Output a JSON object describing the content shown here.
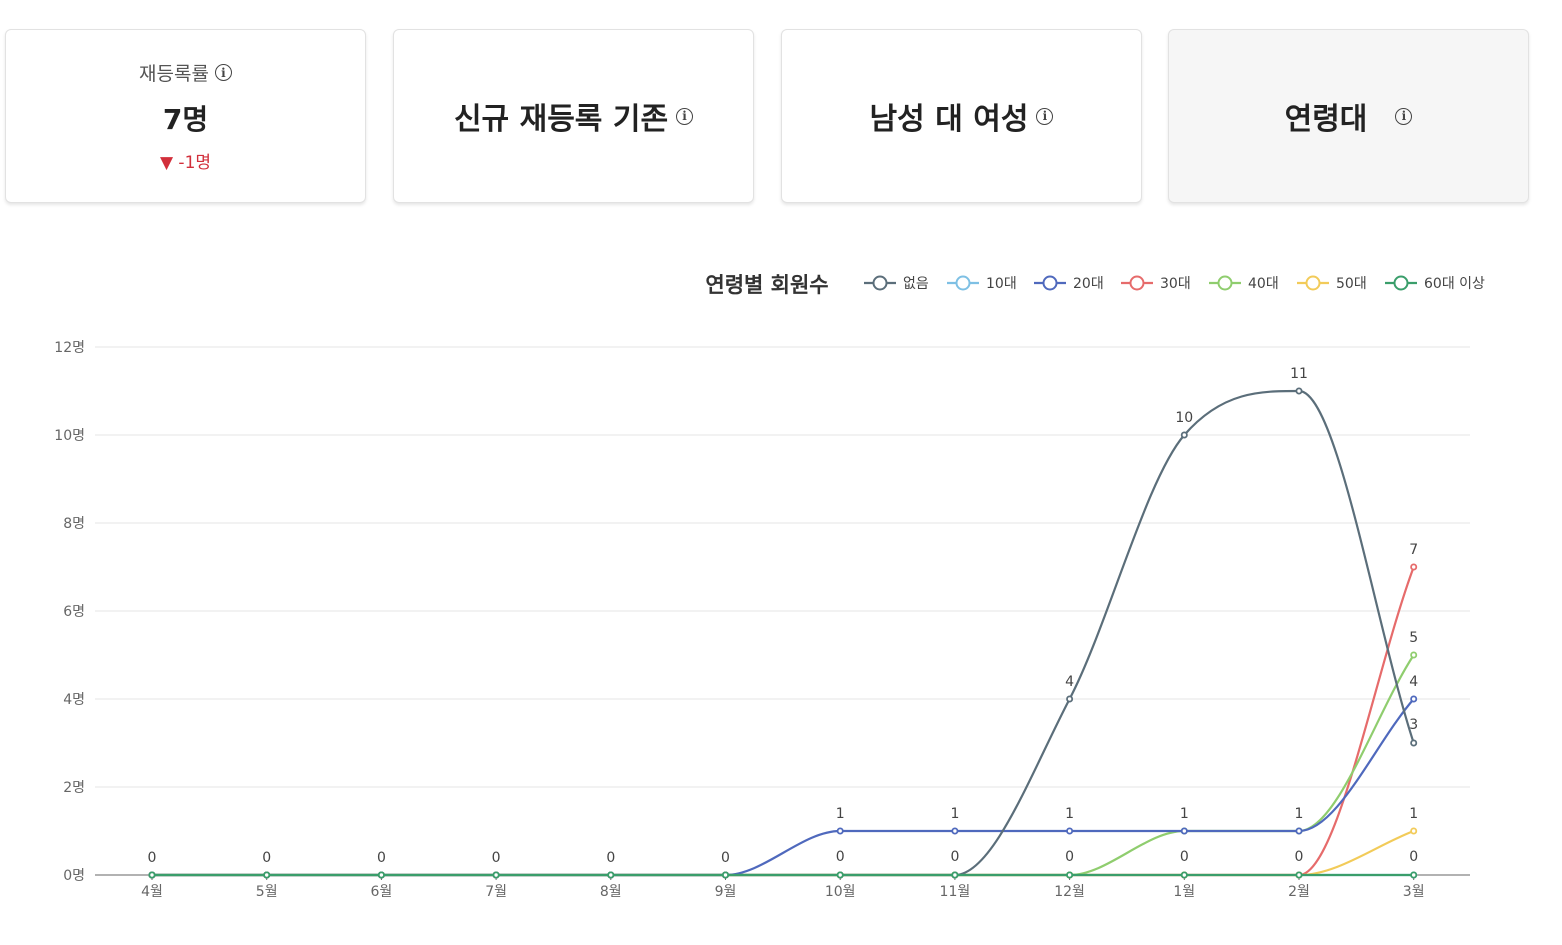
{
  "cards": [
    {
      "title": "재등록률",
      "value": "7명",
      "delta": "▼ -1명"
    },
    {
      "title": "신규 재등록 기존"
    },
    {
      "title": "남성 대 여성"
    },
    {
      "title": "연령대"
    }
  ],
  "info_icon_glyph": "i",
  "chart_data": {
    "type": "line",
    "title": "연령별 회원수",
    "categories": [
      "4월",
      "5월",
      "6월",
      "7월",
      "8월",
      "9월",
      "10월",
      "11월",
      "12월",
      "1월",
      "2월",
      "3월"
    ],
    "y_unit": "명",
    "ylim": [
      0,
      12
    ],
    "yticks": [
      0,
      2,
      4,
      6,
      8,
      10,
      12
    ],
    "grid": true,
    "legend_position": "top-right",
    "series": [
      {
        "name": "없음",
        "color": "#5b6e7a",
        "values": [
          0,
          0,
          0,
          0,
          0,
          0,
          0,
          0,
          4,
          10,
          11,
          3
        ]
      },
      {
        "name": "10대",
        "color": "#7ec0e4",
        "values": [
          0,
          0,
          0,
          0,
          0,
          0,
          0,
          0,
          0,
          0,
          0,
          0
        ]
      },
      {
        "name": "20대",
        "color": "#4f69bd",
        "values": [
          0,
          0,
          0,
          0,
          0,
          0,
          1,
          1,
          1,
          1,
          1,
          4
        ]
      },
      {
        "name": "30대",
        "color": "#e66b6b",
        "values": [
          0,
          0,
          0,
          0,
          0,
          0,
          0,
          0,
          0,
          0,
          0,
          7
        ]
      },
      {
        "name": "40대",
        "color": "#8fcd6e",
        "values": [
          0,
          0,
          0,
          0,
          0,
          0,
          0,
          0,
          0,
          1,
          1,
          5
        ]
      },
      {
        "name": "50대",
        "color": "#f2cb59",
        "values": [
          0,
          0,
          0,
          0,
          0,
          0,
          0,
          0,
          0,
          0,
          0,
          1
        ]
      },
      {
        "name": "60대 이상",
        "color": "#3a9e6b",
        "values": [
          0,
          0,
          0,
          0,
          0,
          0,
          0,
          0,
          0,
          0,
          0,
          0
        ]
      }
    ],
    "labels": {
      "upper": [
        "0",
        "0",
        "0",
        "0",
        "0",
        "0",
        "1",
        "1",
        "4",
        "10",
        "11",
        "7"
      ],
      "extra": [
        {
          "index": 11,
          "text": "5"
        },
        {
          "index": 11,
          "text": "4"
        },
        {
          "index": 11,
          "text": "3"
        },
        {
          "index": 8,
          "text": "1"
        },
        {
          "index": 9,
          "text": "1"
        },
        {
          "index": 10,
          "text": "1"
        },
        {
          "index": 11,
          "text": "1"
        }
      ],
      "lower": [
        "",
        "",
        "",
        "",
        "",
        "",
        "0",
        "0",
        "0",
        "0",
        "0",
        "0"
      ]
    }
  }
}
